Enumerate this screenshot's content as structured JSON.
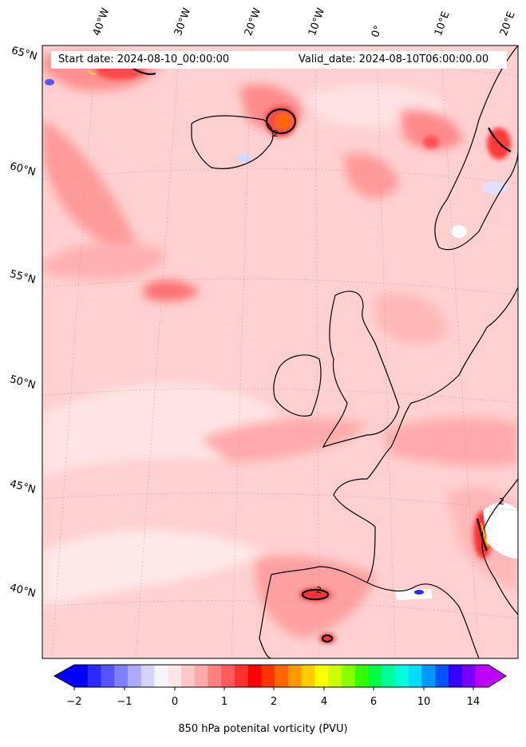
{
  "header": {
    "start_date": "Start date: 2024-08-10_00:00:00",
    "valid_date": "Valid_date: 2024-08-10T06:00:00.00"
  },
  "map": {
    "projection": "lambert-conformal",
    "field": "850 hPa potential vorticity",
    "contour_label": "2",
    "lon_labels": [
      "40°W",
      "30°W",
      "20°W",
      "10°W",
      "0°",
      "10°E",
      "20°E"
    ],
    "lat_labels": [
      "65°N",
      "60°N",
      "55°N",
      "50°N",
      "45°N",
      "40°N"
    ],
    "background_color": "#ffd0d0"
  },
  "colorbar": {
    "label": "850 hPa potenital vorticity (PVU)",
    "tick_labels": [
      "−2",
      "−1",
      "0",
      "1",
      "2",
      "4",
      "6",
      "10",
      "14"
    ],
    "colors": [
      "#0000ff",
      "#2a2aff",
      "#5555ff",
      "#7f7fff",
      "#aaaaff",
      "#d4d4ff",
      "#f5f5ff",
      "#ffe6e6",
      "#ffc8c8",
      "#ffaaaa",
      "#ff8080",
      "#ff5a5a",
      "#ff3030",
      "#ff0000",
      "#ff3300",
      "#ff6600",
      "#ff9900",
      "#ffcc00",
      "#ffff00",
      "#ccff00",
      "#88ff00",
      "#33ff00",
      "#00ff44",
      "#00ff99",
      "#00ffdd",
      "#00ddff",
      "#0099ff",
      "#0055ff",
      "#3300ff",
      "#7700ff",
      "#bb00ff"
    ],
    "under_color": "#0000ff",
    "over_color": "#bb00ff"
  }
}
